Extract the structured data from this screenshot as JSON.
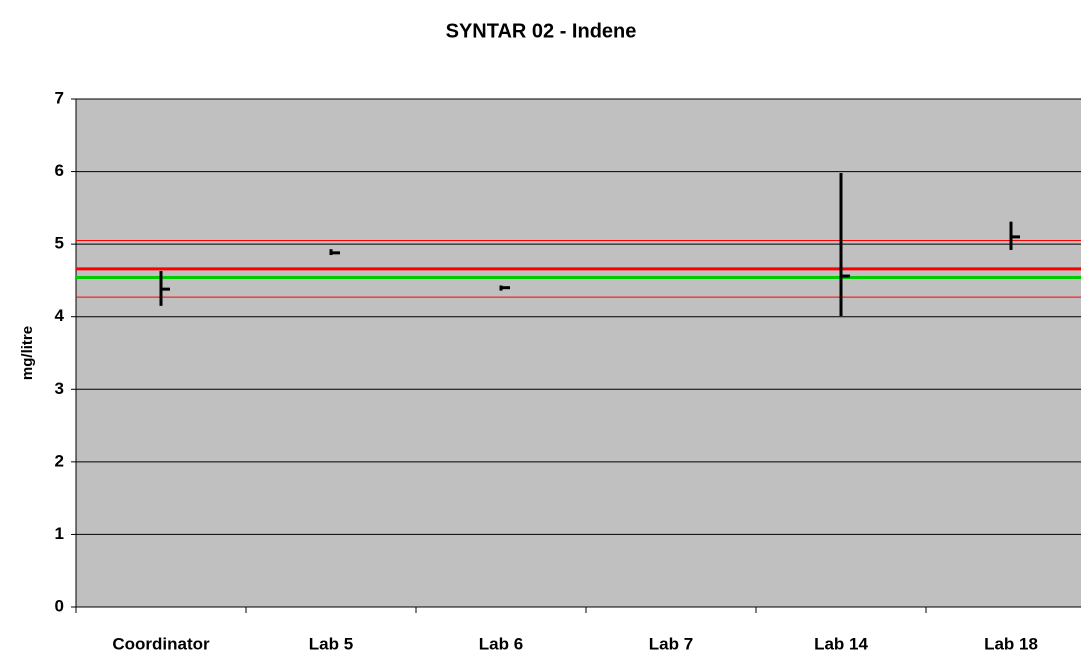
{
  "chart_data": {
    "type": "hilo",
    "title": "SYNTAR 02 - Indene",
    "y_label": "mg/litre",
    "categories": [
      "Coordinator",
      "Lab 5",
      "Lab 6",
      "Lab 7",
      "Lab 14",
      "Lab 18"
    ],
    "series": [
      {
        "color": "#000000",
        "values": [
          4.38,
          4.88,
          4.4,
          null,
          4.56,
          5.1
        ],
        "low": [
          4.15,
          4.85,
          4.36,
          null,
          4.01,
          4.92
        ],
        "high": [
          4.63,
          4.93,
          4.43,
          null,
          5.98,
          5.31
        ]
      }
    ],
    "reference_lines": [
      {
        "value": 4.66,
        "color": "#ff0000",
        "width": 3
      },
      {
        "value": 4.54,
        "color": "#00cc00",
        "width": 3
      },
      {
        "value": 5.05,
        "color": "#ff0000",
        "width": 1
      },
      {
        "value": 4.27,
        "color": "#ff0000",
        "width": 1
      }
    ],
    "ylim": [
      0,
      7
    ],
    "yticks": [
      0,
      1,
      2,
      3,
      4,
      5,
      6,
      7
    ],
    "grid": true,
    "plot_color": "#c0c0c0"
  }
}
